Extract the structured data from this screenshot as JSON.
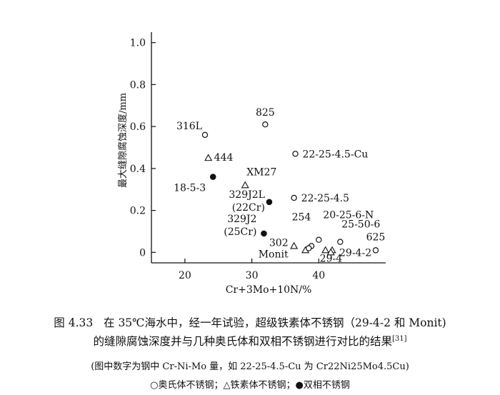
{
  "chart_data": {
    "type": "scatter",
    "xlabel": "Cr+3Mo+10N/%",
    "ylabel": "最大缝隙腐蚀深度/mm",
    "xlim": [
      15,
      50
    ],
    "ylim": [
      -0.05,
      1.05
    ],
    "xticks": [
      20,
      30,
      40
    ],
    "yticks": [
      0,
      0.2,
      0.4,
      0.6,
      0.8,
      1.0
    ],
    "ytick_labels": [
      "0",
      "0.2",
      "0.4",
      "0.6",
      "0.8",
      "1.0"
    ],
    "legend": [
      {
        "marker": "circle-open",
        "label": "奥氏体不锈钢"
      },
      {
        "marker": "triangle-open",
        "label": "铁素体不锈钢"
      },
      {
        "marker": "circle-filled",
        "label": "双相不锈钢"
      }
    ],
    "points": [
      {
        "label": "316L",
        "x": 23.0,
        "y": 0.56,
        "marker": "circle-open"
      },
      {
        "label": "825",
        "x": 32.0,
        "y": 0.61,
        "marker": "circle-open"
      },
      {
        "label": "444",
        "x": 23.5,
        "y": 0.45,
        "marker": "triangle-open"
      },
      {
        "label": "22-25-4.5-Cu",
        "x": 36.5,
        "y": 0.47,
        "marker": "circle-open"
      },
      {
        "label": "18-5-3",
        "x": 24.2,
        "y": 0.36,
        "marker": "circle-filled"
      },
      {
        "label": "XM27",
        "x": 29.0,
        "y": 0.32,
        "marker": "triangle-open"
      },
      {
        "label": "22-25-4.5",
        "x": 36.3,
        "y": 0.26,
        "marker": "circle-open"
      },
      {
        "label": "329J2L\n(22Cr)",
        "x": 32.6,
        "y": 0.24,
        "marker": "circle-filled"
      },
      {
        "label": "329J2\n(25Cr)",
        "x": 31.8,
        "y": 0.09,
        "marker": "circle-filled"
      },
      {
        "label": "254",
        "x": 38.9,
        "y": 0.03,
        "marker": "circle-open"
      },
      {
        "label": "20-25-6-N",
        "x": 40.0,
        "y": 0.06,
        "marker": "circle-open"
      },
      {
        "label": "25-50-6",
        "x": 43.2,
        "y": 0.05,
        "marker": "circle-open"
      },
      {
        "label": "302\nMonit",
        "x": 36.3,
        "y": 0.03,
        "marker": "triangle-open"
      },
      {
        "label": "625",
        "x": 48.5,
        "y": 0.01,
        "marker": "circle-open"
      },
      {
        "label": "29-4",
        "x": 41.0,
        "y": 0.01,
        "marker": "triangle-open"
      },
      {
        "label": "29-4-2",
        "x": 42.0,
        "y": 0.01,
        "marker": "triangle-open"
      },
      {
        "label": "",
        "x": 38.0,
        "y": 0.01,
        "marker": "triangle-open"
      },
      {
        "label": "",
        "x": 38.5,
        "y": 0.02,
        "marker": "circle-open"
      },
      {
        "label": "",
        "x": 41.8,
        "y": 0.0,
        "marker": "triangle-open"
      }
    ]
  },
  "caption": {
    "figure_number": "图 4.33",
    "line1": "在 35℃海水中，经一年试验，超级铁素体不锈钢（29-4-2 和 Monit)",
    "line2": "的缝隙腐蚀深度并与几种奥氏体和双相不锈钢进行对比的结果",
    "ref": "[31]",
    "note": "(图中数字为钢中 Cr-Ni-Mo 量，如 22-25-4.5-Cu 为 Cr22Ni25Mo4.5Cu)",
    "legend_line": "○奥氏体不锈钢；△铁素体不锈钢；●双相不锈钢"
  }
}
